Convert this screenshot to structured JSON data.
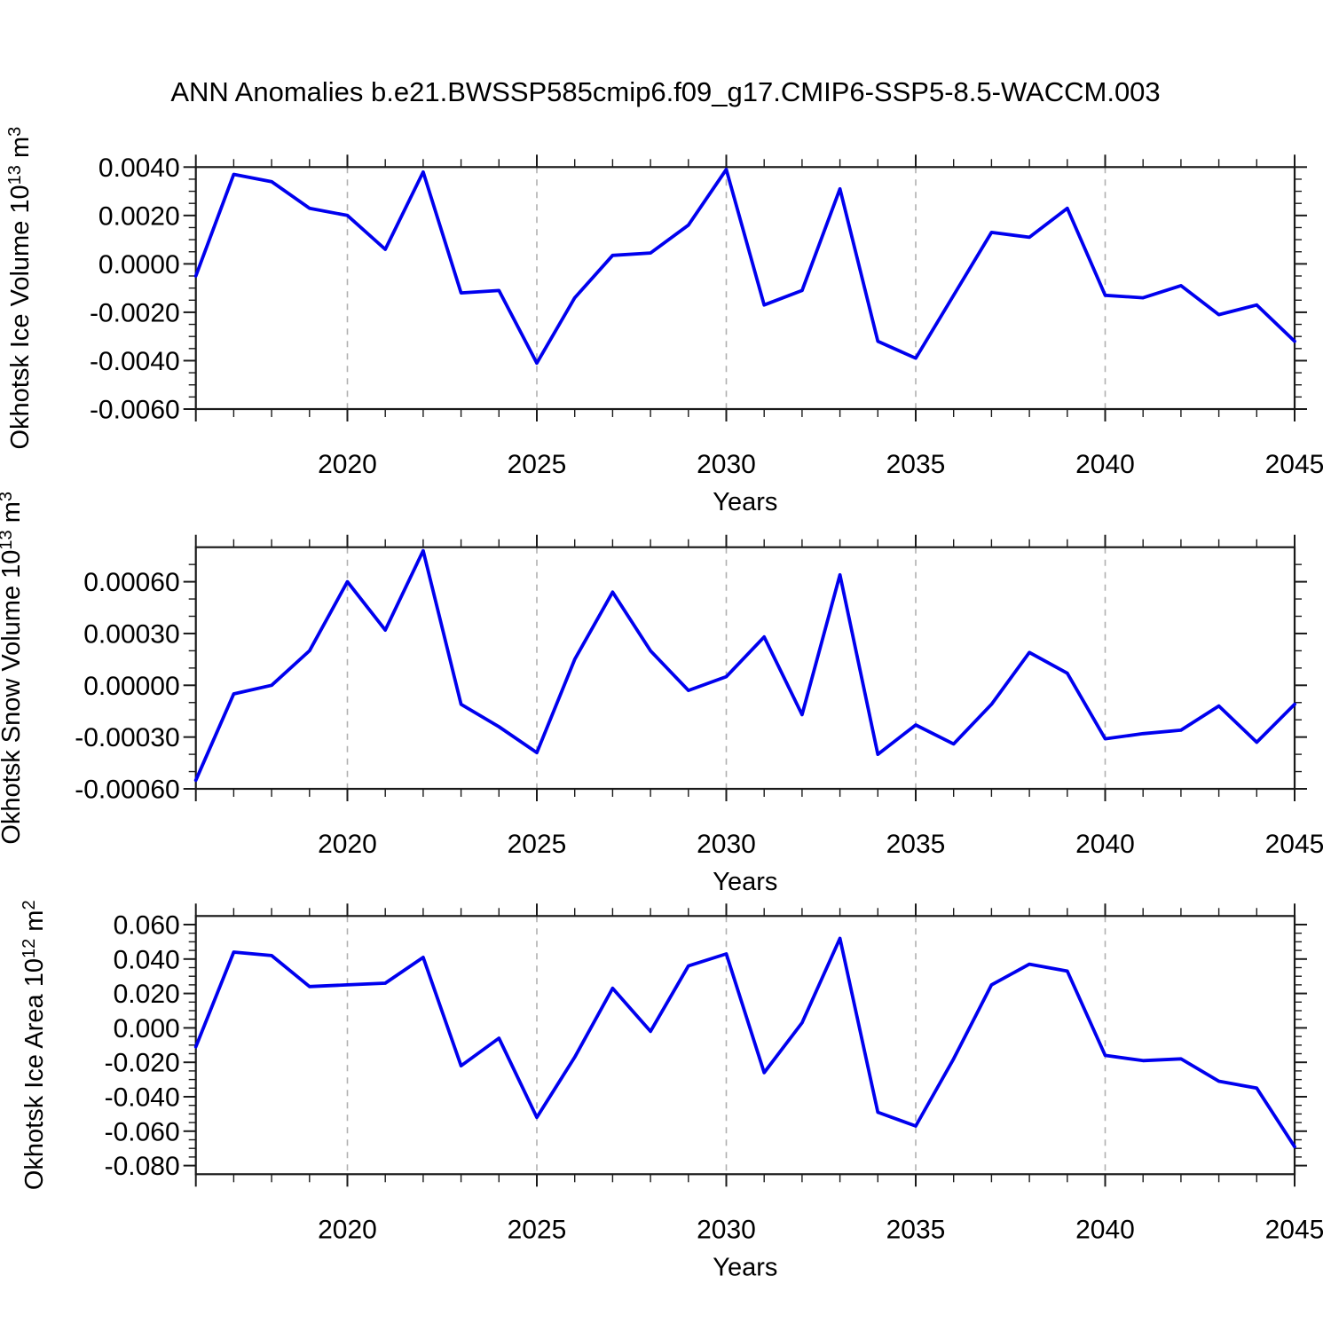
{
  "title": "ANN Anomalies b.e21.BWSSP585cmip6.f09_g17.CMIP6-SSP5-8.5-WACCM.003",
  "colors": {
    "line": "#0000EE",
    "grid": "#B0B0B0",
    "axis": "#1A1A1A",
    "text": "#000000",
    "background": "#FFFFFF"
  },
  "x_axis": {
    "label": "Years",
    "range": [
      2016,
      2045
    ],
    "labeled_ticks": [
      2020,
      2025,
      2030,
      2035,
      2040,
      2045
    ],
    "tick_labels": [
      "2020",
      "2025",
      "2030",
      "2035",
      "2040",
      "2045"
    ],
    "gridline_years": [
      2020,
      2025,
      2030,
      2035,
      2040
    ],
    "minor_tick_every_years": 1
  },
  "chart_data": [
    {
      "type": "line",
      "series_name": "Okhotsk Ice Volume anomaly",
      "ylabel": "Okhotsk Ice Volume 10^13^ m^3^",
      "unit": "10^13 m^3",
      "xlabel": "Years",
      "x": [
        2016,
        2017,
        2018,
        2019,
        2020,
        2021,
        2022,
        2023,
        2024,
        2025,
        2026,
        2027,
        2028,
        2029,
        2030,
        2031,
        2032,
        2033,
        2034,
        2035,
        2036,
        2037,
        2038,
        2039,
        2040,
        2041,
        2042,
        2043,
        2044,
        2045
      ],
      "values": [
        -0.0005,
        0.0037,
        0.0034,
        0.0023,
        0.002,
        0.0006,
        0.0038,
        -0.0012,
        -0.0011,
        -0.0041,
        -0.0014,
        0.00035,
        0.00045,
        0.0016,
        0.0039,
        -0.0017,
        -0.0011,
        0.0031,
        -0.0032,
        -0.0039,
        -0.0013,
        0.0013,
        0.0011,
        0.0023,
        -0.0013,
        -0.0014,
        -0.0009,
        -0.0021,
        -0.0017,
        -0.0032
      ],
      "ylim": [
        -0.006,
        0.004
      ],
      "yticks": [
        0.004,
        0.002,
        0.0,
        -0.002,
        -0.004,
        -0.006
      ],
      "ytick_labels": [
        "0.0040",
        "0.0020",
        "0.0000",
        "-0.0020",
        "-0.0040",
        "-0.0060"
      ],
      "y_minor_step": 0.0005,
      "grid": "x-dashed-only"
    },
    {
      "type": "line",
      "series_name": "Okhotsk Snow Volume anomaly",
      "ylabel": "Okhotsk Snow Volume 10^13^ m^3^",
      "unit": "10^13 m^3",
      "xlabel": "Years",
      "x": [
        2016,
        2017,
        2018,
        2019,
        2020,
        2021,
        2022,
        2023,
        2024,
        2025,
        2026,
        2027,
        2028,
        2029,
        2030,
        2031,
        2032,
        2033,
        2034,
        2035,
        2036,
        2037,
        2038,
        2039,
        2040,
        2041,
        2042,
        2043,
        2044,
        2045
      ],
      "values": [
        -0.00055,
        -5e-05,
        0.0,
        0.0002,
        0.0006,
        0.00032,
        0.00078,
        -0.00011,
        -0.00024,
        -0.00039,
        0.00015,
        0.00054,
        0.0002,
        -3e-05,
        5e-05,
        0.00028,
        -0.00017,
        0.00064,
        -0.0004,
        -0.00023,
        -0.00034,
        -0.00011,
        0.00019,
        7e-05,
        -0.00031,
        -0.00028,
        -0.00026,
        -0.00012,
        -0.00033,
        -0.00011
      ],
      "ylim": [
        -0.0006,
        0.0008
      ],
      "yticks": [
        0.0006,
        0.0003,
        0.0,
        -0.0003,
        -0.0006
      ],
      "ytick_labels": [
        "0.00060",
        "0.00030",
        "0.00000",
        "-0.00030",
        "-0.00060"
      ],
      "y_minor_step": 0.0001,
      "grid": "x-dashed-only"
    },
    {
      "type": "line",
      "series_name": "Okhotsk Ice Area anomaly",
      "ylabel": "Okhotsk Ice Area 10^12^ m^2^",
      "unit": "10^12 m^2",
      "xlabel": "Years",
      "x": [
        2016,
        2017,
        2018,
        2019,
        2020,
        2021,
        2022,
        2023,
        2024,
        2025,
        2026,
        2027,
        2028,
        2029,
        2030,
        2031,
        2032,
        2033,
        2034,
        2035,
        2036,
        2037,
        2038,
        2039,
        2040,
        2041,
        2042,
        2043,
        2044,
        2045
      ],
      "values": [
        -0.011,
        0.044,
        0.042,
        0.024,
        0.025,
        0.026,
        0.041,
        -0.022,
        -0.006,
        -0.052,
        -0.017,
        0.023,
        -0.002,
        0.036,
        0.043,
        -0.026,
        0.003,
        0.052,
        -0.049,
        -0.057,
        -0.018,
        0.025,
        0.037,
        0.033,
        -0.016,
        -0.019,
        -0.018,
        -0.031,
        -0.035,
        -0.069
      ],
      "ylim": [
        -0.085,
        0.065
      ],
      "yticks": [
        0.06,
        0.04,
        0.02,
        0.0,
        -0.02,
        -0.04,
        -0.06,
        -0.08
      ],
      "ytick_labels": [
        "0.060",
        "0.040",
        "0.020",
        "0.000",
        "-0.020",
        "-0.040",
        "-0.060",
        "-0.080"
      ],
      "y_minor_step": 0.005,
      "grid": "x-dashed-only"
    }
  ]
}
